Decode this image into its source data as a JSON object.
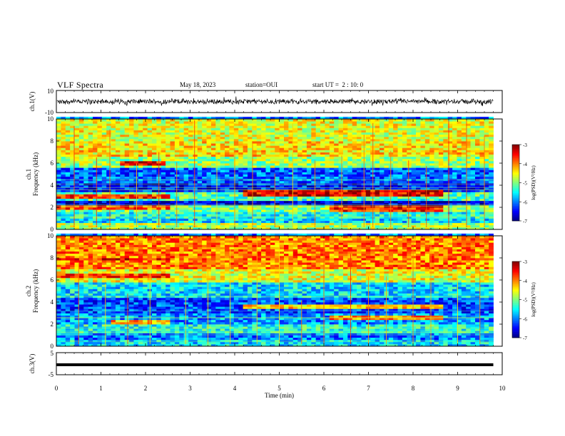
{
  "header": {
    "title": "VLF Spectra",
    "date": "May 18, 2023",
    "station": "station=OUI",
    "start_ut": "start UT =  2 : 10: 0"
  },
  "colorbar": {
    "label": "log(PSD)(V²/Hz)",
    "ticks": [
      "-3",
      "-4",
      "-5",
      "-6",
      "-7"
    ],
    "colors": [
      "#00007f",
      "#0000ff",
      "#007fff",
      "#00ffff",
      "#7fff7f",
      "#ffff00",
      "#ff7f00",
      "#ff0000",
      "#7f0000"
    ],
    "background": "#000000"
  },
  "chart_data": [
    {
      "type": "line",
      "name": "ch1-waveform",
      "ylabel": "ch.1(V)",
      "ylim": [
        -10,
        10
      ],
      "ytick_labels": [
        "10",
        "-10"
      ],
      "x": [
        0,
        9.8
      ],
      "description_values": {
        "typical_amplitude_V": [
          -2,
          2
        ]
      },
      "color": "#000000"
    },
    {
      "type": "heatmap",
      "name": "ch1-spectrogram",
      "ylabel": "ch.1\nFrequency (kHz)",
      "ylim": [
        0,
        10
      ],
      "ytick_labels": [
        "0",
        "2",
        "4",
        "6",
        "8",
        "10"
      ],
      "xlim": [
        0,
        10
      ],
      "data_end_min": 9.8,
      "value_range": [
        -7,
        -3
      ],
      "rows": [
        {
          "f": [
            0.0,
            0.6
          ],
          "v": -4.8
        },
        {
          "f": [
            0.6,
            1.0
          ],
          "v": -5.6
        },
        {
          "f": [
            1.0,
            1.6
          ],
          "v": -5.4
        },
        {
          "f": [
            1.6,
            2.2
          ],
          "v": -5.0
        },
        {
          "f": [
            2.2,
            2.7
          ],
          "v": -6.6
        },
        {
          "f": [
            2.7,
            3.5
          ],
          "v": -5.2
        },
        {
          "f": [
            3.5,
            4.2
          ],
          "v": -6.4
        },
        {
          "f": [
            4.2,
            5.6
          ],
          "v": -6.1
        },
        {
          "f": [
            5.6,
            6.6
          ],
          "v": -4.9
        },
        {
          "f": [
            6.6,
            8.0
          ],
          "v": -4.4
        },
        {
          "f": [
            8.0,
            10.0
          ],
          "v": -4.6
        }
      ],
      "bands": [
        {
          "t": [
            0.0,
            2.55
          ],
          "f": [
            2.9,
            3.3
          ],
          "v": -3.7
        },
        {
          "t": [
            0.0,
            2.55
          ],
          "f": [
            1.8,
            2.2
          ],
          "v": -3.8
        },
        {
          "t": [
            4.2,
            6.1
          ],
          "f": [
            3.1,
            3.6
          ],
          "v": -3.4
        },
        {
          "t": [
            6.1,
            8.65
          ],
          "f": [
            3.1,
            3.6
          ],
          "v": -3.4
        },
        {
          "t": [
            6.1,
            8.65
          ],
          "f": [
            1.7,
            2.2
          ],
          "v": -3.6
        },
        {
          "t": [
            1.4,
            2.5
          ],
          "f": [
            5.9,
            6.2
          ],
          "v": -3.5
        }
      ],
      "spikes_t": [
        0.4,
        0.9,
        1.2,
        1.8,
        2.3,
        2.7,
        3.1,
        3.6,
        4.0,
        4.4,
        4.9,
        5.3,
        5.8,
        6.4,
        6.9,
        7.1,
        7.5,
        7.9,
        8.3,
        8.8,
        9.2,
        9.6
      ]
    },
    {
      "type": "heatmap",
      "name": "ch2-spectrogram",
      "ylabel": "ch.2\nFrequency (kHz)",
      "ylim": [
        0,
        10
      ],
      "ytick_labels": [
        "0",
        "2",
        "4",
        "6",
        "8",
        "10"
      ],
      "xlim": [
        0,
        10
      ],
      "data_end_min": 9.8,
      "value_range": [
        -7,
        -3
      ],
      "rows": [
        {
          "f": [
            0.0,
            0.6
          ],
          "v": -5.6
        },
        {
          "f": [
            0.6,
            1.2
          ],
          "v": -6.0
        },
        {
          "f": [
            1.2,
            2.0
          ],
          "v": -5.4
        },
        {
          "f": [
            2.0,
            3.0
          ],
          "v": -5.9
        },
        {
          "f": [
            3.0,
            4.4
          ],
          "v": -6.2
        },
        {
          "f": [
            4.4,
            5.8
          ],
          "v": -5.6
        },
        {
          "f": [
            5.8,
            7.0
          ],
          "v": -4.6
        },
        {
          "f": [
            7.0,
            10.0
          ],
          "v": -4.0
        }
      ],
      "bands": [
        {
          "t": [
            0.0,
            2.55
          ],
          "f": [
            7.8,
            8.1
          ],
          "v": -3.5
        },
        {
          "t": [
            0.0,
            2.55
          ],
          "f": [
            6.3,
            6.6
          ],
          "v": -3.7
        },
        {
          "t": [
            1.2,
            2.55
          ],
          "f": [
            2.0,
            2.4
          ],
          "v": -4.2
        },
        {
          "t": [
            4.2,
            8.65
          ],
          "f": [
            3.5,
            3.9
          ],
          "v": -4.3
        },
        {
          "t": [
            6.1,
            8.65
          ],
          "f": [
            2.4,
            2.9
          ],
          "v": -4.0
        }
      ],
      "spikes_t": [
        0.5,
        1.1,
        1.6,
        2.1,
        2.9,
        3.4,
        3.9,
        4.5,
        5.0,
        5.5,
        6.0,
        6.6,
        7.0,
        7.4,
        8.0,
        8.4,
        9.0,
        9.5
      ]
    },
    {
      "type": "line",
      "name": "ch3-waveform",
      "ylabel": "ch.3(V)",
      "ylim": [
        -5,
        5
      ],
      "ytick_labels": [
        "5",
        "-5"
      ],
      "x": [
        0,
        9.8
      ],
      "y": [
        -0.5,
        -0.5
      ],
      "color": "#000000"
    }
  ],
  "xaxis": {
    "label": "Time (min)",
    "xlim": [
      0,
      10
    ],
    "tick_labels": [
      "0",
      "1",
      "2",
      "3",
      "4",
      "5",
      "6",
      "7",
      "8",
      "9",
      "10"
    ]
  }
}
